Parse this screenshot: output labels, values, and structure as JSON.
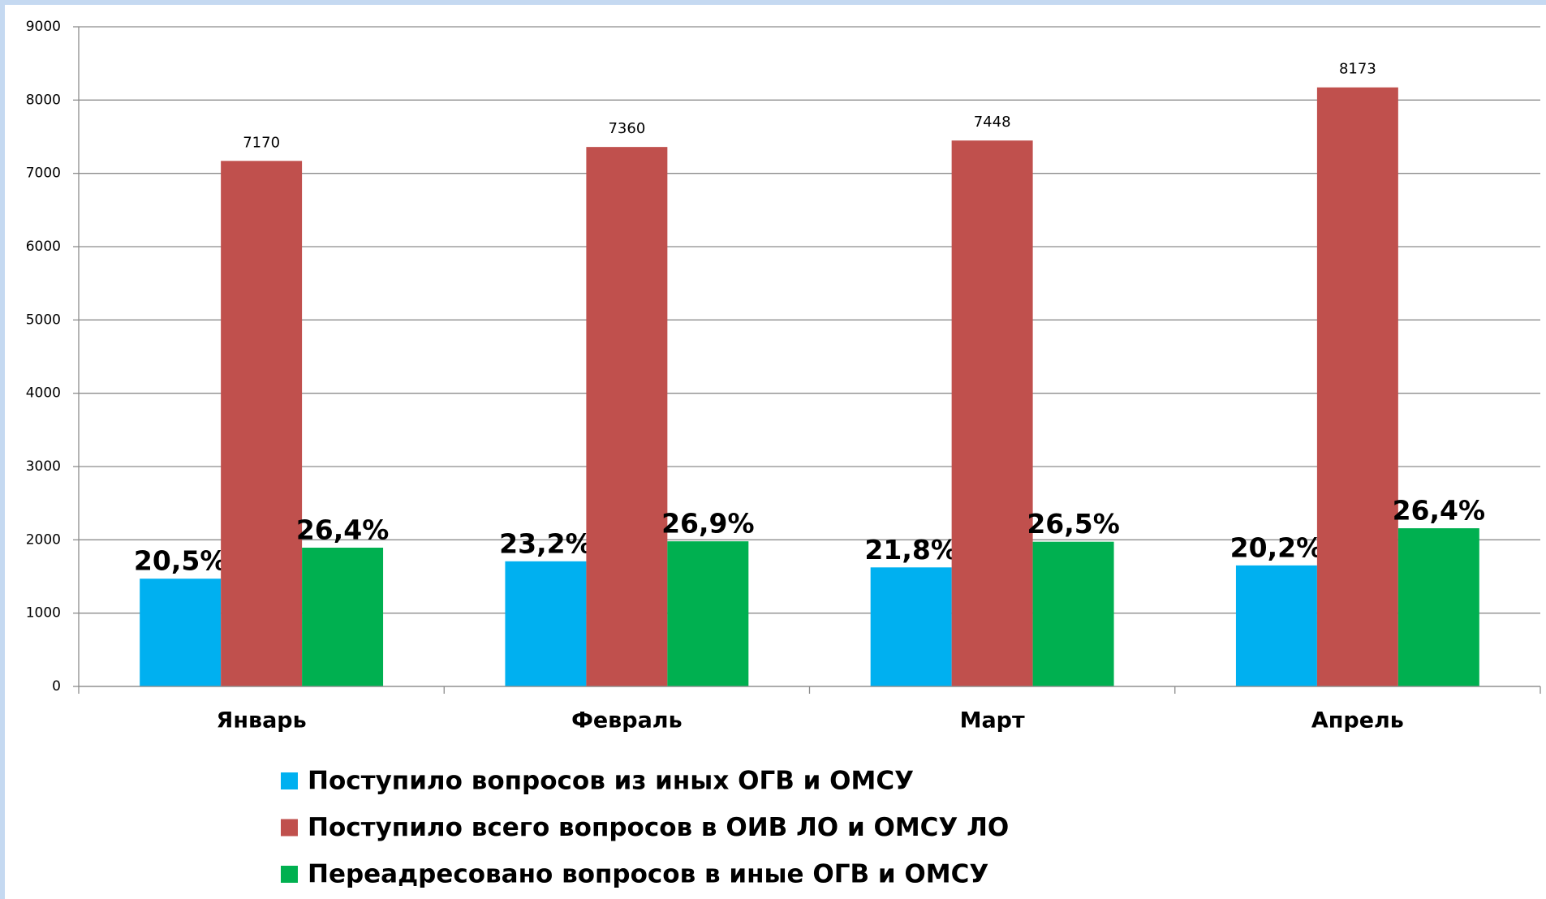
{
  "chart_data": {
    "type": "bar",
    "categories": [
      "Январь",
      "Февраль",
      "Март",
      "Апрель"
    ],
    "series": [
      {
        "name": "Поступило вопросов из иных ОГВ и ОМСУ",
        "color": "#00b0f0",
        "values": [
          1470,
          1707,
          1624,
          1651
        ],
        "shares": [
          20.5,
          23.2,
          21.8,
          20.2
        ],
        "share_labels": [
          "20,5%",
          "23,2%",
          "21,8%",
          "20,2%"
        ]
      },
      {
        "name": "Поступило всего вопросов в ОИВ ЛО и ОМСУ ЛО",
        "color": "#c0504d",
        "values": [
          7170,
          7360,
          7448,
          8173
        ]
      },
      {
        "name": "Переадресовано вопросов в иные ОГВ и ОМСУ",
        "color": "#00b050",
        "values": [
          1893,
          1980,
          1974,
          2158
        ],
        "shares": [
          26.4,
          26.9,
          26.5,
          26.4
        ],
        "share_labels": [
          "26,4%",
          "26,9%",
          "26,5%",
          "26,4%"
        ]
      }
    ],
    "ylim": [
      0,
      9000
    ],
    "yticks": [
      0,
      1000,
      2000,
      3000,
      4000,
      5000,
      6000,
      7000,
      8000,
      9000
    ],
    "grid": true
  }
}
